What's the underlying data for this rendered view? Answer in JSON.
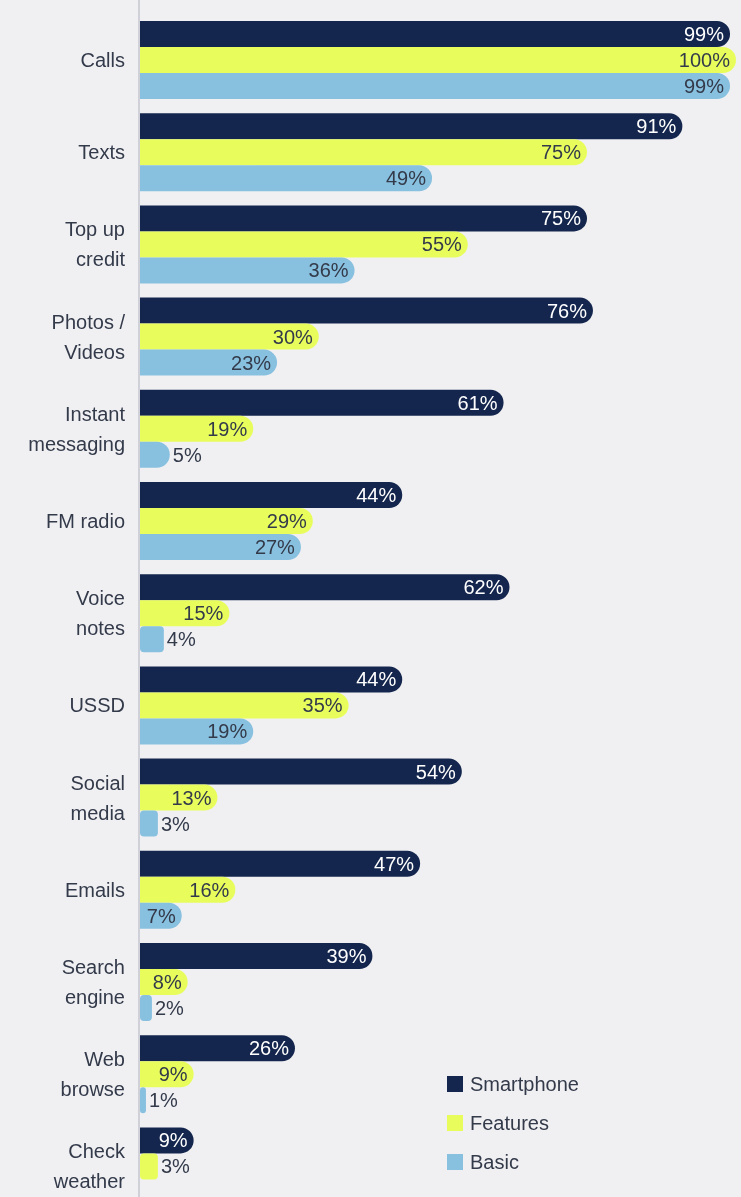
{
  "chart_data": {
    "type": "bar",
    "orientation": "horizontal",
    "categories": [
      "Calls",
      "Texts",
      "Top up\ncredit",
      "Photos /\nVideos",
      "Instant\nmessaging",
      "FM radio",
      "Voice\nnotes",
      "USSD",
      "Social\nmedia",
      "Emails",
      "Search\nengine",
      "Web\nbrowse",
      "Check\nweather"
    ],
    "series": [
      {
        "name": "Smartphone",
        "color": "#14264d",
        "values": [
          99,
          91,
          75,
          76,
          61,
          44,
          62,
          44,
          54,
          47,
          39,
          26,
          9
        ],
        "value_labels": [
          "99%",
          "91%",
          "75%",
          "76%",
          "61%",
          "44%",
          "62%",
          "44%",
          "54%",
          "47%",
          "39%",
          "26%",
          "9%"
        ]
      },
      {
        "name": "Features",
        "color": "#e8fd5c",
        "values": [
          100,
          75,
          55,
          30,
          19,
          29,
          15,
          35,
          13,
          16,
          8,
          9,
          3
        ],
        "value_labels": [
          "100%",
          "75%",
          "55%",
          "30%",
          "19%",
          "29%",
          "15%",
          "35%",
          "13%",
          "16%",
          "8%",
          "9%",
          "3%"
        ]
      },
      {
        "name": "Basic",
        "color": "#88c0df",
        "values": [
          99,
          49,
          36,
          23,
          5,
          27,
          4,
          19,
          3,
          7,
          2,
          1,
          null
        ],
        "value_labels": [
          "99%",
          "49%",
          "36%",
          "23%",
          "5%",
          "27%",
          "4%",
          "19%",
          "3%",
          "7%",
          "2%",
          "1%",
          null
        ]
      }
    ],
    "legend": "bottom right",
    "tick_labels": "y"
  }
}
